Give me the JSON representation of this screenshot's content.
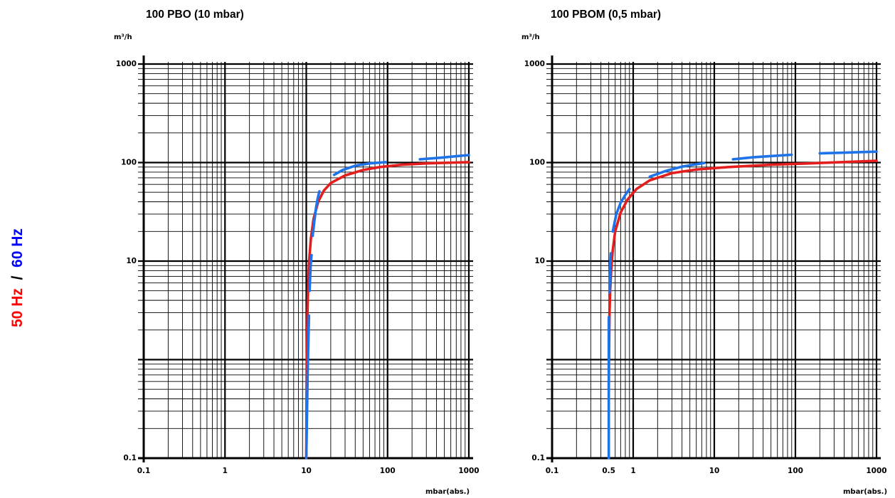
{
  "side_label": {
    "hz50": "50 Hz",
    "sep": " / ",
    "hz60": "60 Hz",
    "hz50_color": "#ff0000",
    "hz60_color": "#0000ff"
  },
  "colors": {
    "curve_50hz": "#e41d1d",
    "curve_60hz": "#1e73e8",
    "grid": "#000000"
  },
  "chart_data": [
    {
      "type": "line",
      "title": "100 PBO (10 mbar)",
      "ylabel": "m³/h",
      "xlabel": "mbar(abs.)",
      "x_scale": "log",
      "y_scale": "log",
      "xlim": [
        0.1,
        1000
      ],
      "ylim": [
        0.1,
        1000
      ],
      "grid": true,
      "x_ticks": [
        "0.1",
        "1",
        "10",
        "100",
        "1000"
      ],
      "y_ticks": [
        "0.1",
        "10",
        "100",
        "1000"
      ],
      "series": [
        {
          "key": "50hz",
          "style": "solid",
          "points": [
            [
              10,
              0.1
            ],
            [
              10.1,
              0.5
            ],
            [
              10.2,
              1.5
            ],
            [
              10.35,
              3
            ],
            [
              10.55,
              6
            ],
            [
              10.85,
              10
            ],
            [
              11.4,
              17
            ],
            [
              12.3,
              27
            ],
            [
              14,
              40
            ],
            [
              16.5,
              52
            ],
            [
              20,
              62
            ],
            [
              30,
              74
            ],
            [
              50,
              84
            ],
            [
              80,
              90
            ],
            [
              150,
              95
            ],
            [
              300,
              98
            ],
            [
              1000,
              101
            ]
          ]
        },
        {
          "key": "60hz",
          "style": "dashed",
          "segments": [
            [
              [
                10,
                0.1
              ],
              [
                10.4,
                0.7
              ],
              [
                10.8,
                2.8
              ]
            ],
            [
              [
                11,
                5
              ],
              [
                11.3,
                9
              ],
              [
                11.6,
                11.5
              ]
            ],
            [
              [
                12,
                18
              ],
              [
                12.6,
                26
              ],
              [
                13.2,
                35
              ],
              [
                13.8,
                43
              ],
              [
                14.5,
                51
              ]
            ],
            [
              [
                22,
                75
              ],
              [
                28,
                84
              ],
              [
                40,
                93
              ],
              [
                60,
                98
              ],
              [
                95,
                101
              ]
            ],
            [
              [
                250,
                108
              ],
              [
                450,
                112
              ],
              [
                700,
                116
              ],
              [
                1000,
                119
              ]
            ]
          ]
        }
      ]
    },
    {
      "type": "line",
      "title": "100 PBOM (0,5 mbar)",
      "ylabel": "m³/h",
      "xlabel": "mbar(abs.)",
      "x_scale": "log",
      "y_scale": "log",
      "xlim": [
        0.1,
        1000
      ],
      "ylim": [
        0.1,
        1000
      ],
      "grid": true,
      "x_ticks": [
        "0.1",
        "0.5",
        "1",
        "10",
        "100",
        "1000"
      ],
      "y_ticks": [
        "0.1",
        "10",
        "100",
        "1000"
      ],
      "series": [
        {
          "key": "50hz",
          "style": "solid",
          "points": [
            [
              0.5,
              0.5
            ],
            [
              0.505,
              1.5
            ],
            [
              0.51,
              3
            ],
            [
              0.52,
              5
            ],
            [
              0.535,
              8
            ],
            [
              0.56,
              13
            ],
            [
              0.6,
              20
            ],
            [
              0.7,
              31
            ],
            [
              0.85,
              42
            ],
            [
              1.1,
              54
            ],
            [
              1.6,
              66
            ],
            [
              3,
              78
            ],
            [
              6,
              85
            ],
            [
              15,
              90
            ],
            [
              50,
              95
            ],
            [
              200,
              99
            ],
            [
              1000,
              104
            ]
          ]
        },
        {
          "key": "60hz",
          "style": "dashed",
          "segments": [
            [
              [
                0.5,
                0.1
              ],
              [
                0.5,
                2.7
              ]
            ],
            [
              [
                0.51,
                4.8
              ],
              [
                0.52,
                9
              ],
              [
                0.53,
                12
              ]
            ],
            [
              [
                0.56,
                20
              ],
              [
                0.62,
                30
              ],
              [
                0.7,
                39
              ],
              [
                0.8,
                47
              ],
              [
                0.9,
                54
              ]
            ],
            [
              [
                1.6,
                72
              ],
              [
                2.5,
                82
              ],
              [
                4,
                91
              ],
              [
                7.5,
                99
              ]
            ],
            [
              [
                17,
                108
              ],
              [
                30,
                113
              ],
              [
                55,
                117
              ],
              [
                90,
                120
              ]
            ],
            [
              [
                200,
                124
              ],
              [
                400,
                126
              ],
              [
                700,
                128
              ],
              [
                1000,
                129
              ]
            ]
          ]
        }
      ]
    }
  ]
}
